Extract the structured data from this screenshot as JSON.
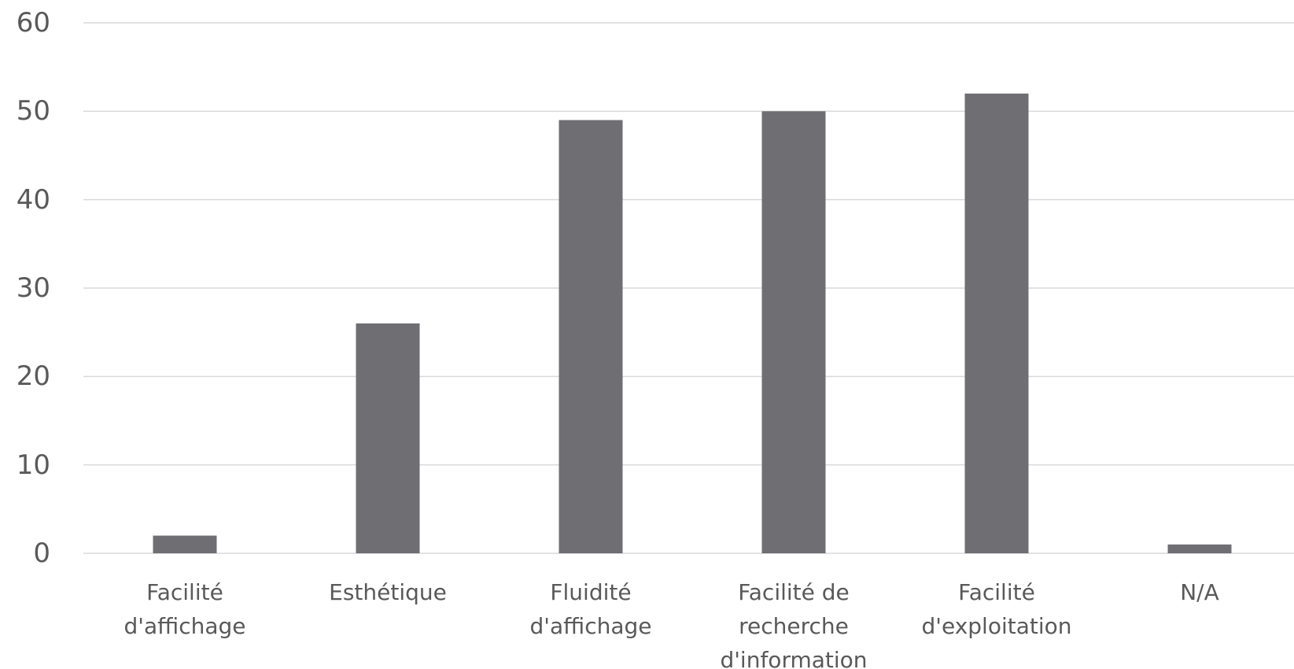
{
  "chart_data": {
    "type": "bar",
    "categories": [
      "Facilité d'affichage",
      "Esthétique",
      "Fluidité d'affichage",
      "Facilité de recherche d'information",
      "Facilité d'exploitation",
      "N/A"
    ],
    "values": [
      2,
      26,
      49,
      50,
      52,
      1
    ],
    "color": "#6f6e73",
    "ylim": [
      0,
      60
    ],
    "yticks": [
      0,
      10,
      20,
      30,
      40,
      50,
      60
    ],
    "grid": true
  }
}
